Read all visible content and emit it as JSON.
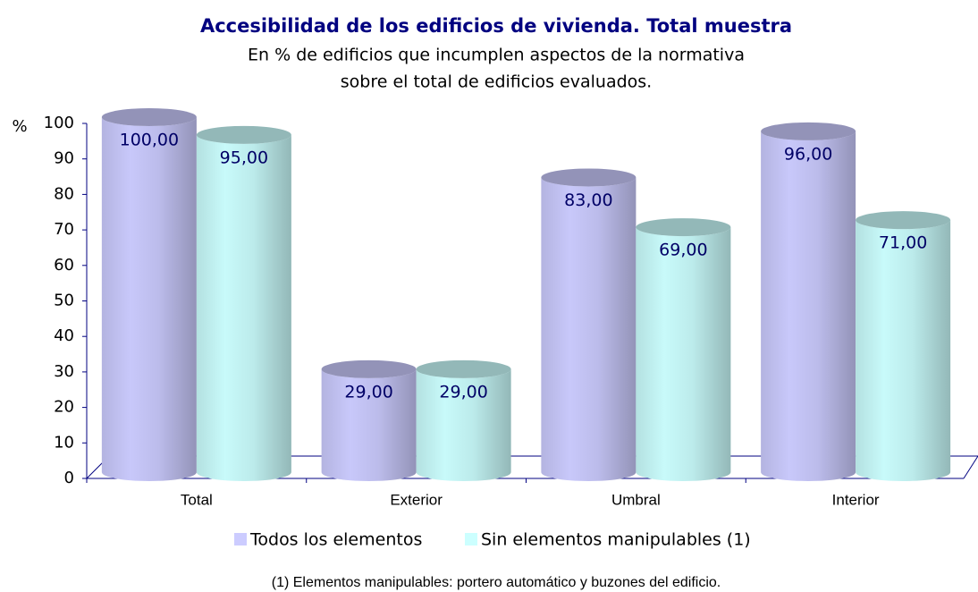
{
  "chart_data": {
    "type": "bar",
    "title": "Accesibilidad de los edificios de vivienda. Total muestra",
    "subtitle": [
      "En % de edificios que incumplen aspectos de la normativa",
      "sobre el total de edificios evaluados."
    ],
    "y_label": "%",
    "categories": [
      "Total",
      "Exterior",
      "Umbral",
      "Interior"
    ],
    "series": [
      {
        "name": "Todos los elementos",
        "color": "#ccccff",
        "values": [
          100,
          29,
          83,
          96
        ],
        "value_labels": [
          "100,00",
          "29,00",
          "83,00",
          "96,00"
        ]
      },
      {
        "name": "Sin elementos manipulables (1)",
        "color": "#ccffff",
        "values": [
          95,
          29,
          69,
          71
        ],
        "value_labels": [
          "95,00",
          "29,00",
          "69,00",
          "71,00"
        ]
      }
    ],
    "ylim": [
      0,
      100
    ],
    "yticks": [
      0,
      10,
      20,
      30,
      40,
      50,
      60,
      70,
      80,
      90,
      100
    ],
    "legend": "bottom",
    "footnote": "(1) Elementos manipulables: portero automático y buzones del edificio."
  }
}
